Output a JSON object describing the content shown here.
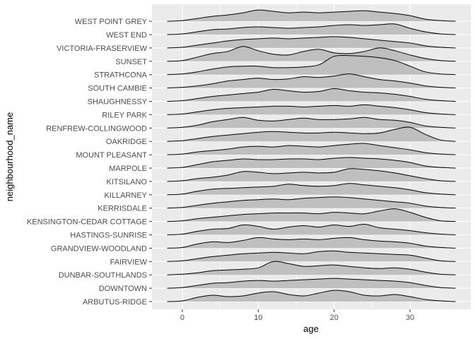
{
  "chart_data": {
    "type": "ridgeline",
    "xlabel": "age",
    "ylabel": "neighbourhood_name",
    "xlim": [
      -4,
      38
    ],
    "xticks": [
      0,
      10,
      20,
      30
    ],
    "grid": true,
    "colors": {
      "panel": "#ebebeb",
      "grid": "#ffffff",
      "fill": "#bfbfbf",
      "line": "#000000"
    },
    "x": [
      -2,
      0,
      2,
      4,
      6,
      8,
      10,
      12,
      14,
      16,
      18,
      20,
      22,
      24,
      26,
      28,
      30,
      32,
      34,
      36
    ],
    "series": [
      {
        "name": "ARBUTUS-RIDGE",
        "values": [
          0.0,
          0.05,
          0.3,
          0.45,
          0.35,
          0.4,
          0.6,
          0.7,
          0.5,
          0.4,
          0.6,
          0.8,
          0.7,
          0.45,
          0.4,
          0.5,
          0.35,
          0.15,
          0.05,
          0.0
        ]
      },
      {
        "name": "DOWNTOWN",
        "values": [
          0.0,
          0.05,
          0.2,
          0.35,
          0.4,
          0.5,
          0.55,
          0.5,
          0.55,
          0.6,
          0.65,
          0.7,
          0.65,
          0.6,
          0.55,
          0.5,
          0.4,
          0.2,
          0.05,
          0.0
        ]
      },
      {
        "name": "DUNBAR-SOUTHLANDS",
        "values": [
          0.0,
          0.05,
          0.15,
          0.3,
          0.35,
          0.4,
          0.5,
          0.95,
          0.8,
          0.6,
          0.65,
          0.7,
          0.6,
          0.5,
          0.45,
          0.5,
          0.4,
          0.2,
          0.05,
          0.0
        ]
      },
      {
        "name": "FAIRVIEW",
        "values": [
          0.0,
          0.05,
          0.2,
          0.35,
          0.45,
          0.55,
          0.6,
          0.65,
          0.6,
          0.55,
          0.7,
          0.75,
          0.65,
          0.6,
          0.55,
          0.5,
          0.45,
          0.25,
          0.05,
          0.0
        ]
      },
      {
        "name": "GRANDVIEW-WOODLAND",
        "values": [
          0.0,
          0.05,
          0.3,
          0.45,
          0.4,
          0.55,
          0.75,
          0.65,
          0.6,
          0.65,
          0.6,
          0.7,
          0.75,
          0.6,
          0.5,
          0.45,
          0.35,
          0.15,
          0.05,
          0.0
        ]
      },
      {
        "name": "HASTINGS-SUNRISE",
        "values": [
          0.0,
          0.05,
          0.25,
          0.4,
          0.45,
          0.7,
          0.6,
          0.4,
          0.55,
          0.65,
          0.55,
          0.7,
          0.6,
          0.75,
          0.5,
          0.4,
          0.3,
          0.15,
          0.05,
          0.0
        ]
      },
      {
        "name": "KENSINGTON-CEDAR COTTAGE",
        "values": [
          0.0,
          0.05,
          0.2,
          0.3,
          0.4,
          0.5,
          0.55,
          0.6,
          0.6,
          0.6,
          0.55,
          0.65,
          0.6,
          0.55,
          0.75,
          0.9,
          0.65,
          0.3,
          0.05,
          0.0
        ]
      },
      {
        "name": "KERRISDALE",
        "values": [
          0.0,
          0.05,
          0.2,
          0.35,
          0.45,
          0.55,
          0.6,
          0.65,
          0.6,
          0.7,
          0.75,
          0.8,
          0.75,
          0.65,
          0.55,
          0.45,
          0.35,
          0.15,
          0.05,
          0.0
        ]
      },
      {
        "name": "KILLARNEY",
        "values": [
          0.0,
          0.05,
          0.25,
          0.4,
          0.45,
          0.5,
          0.55,
          0.6,
          0.75,
          0.65,
          0.6,
          0.65,
          0.8,
          0.7,
          0.6,
          0.5,
          0.35,
          0.15,
          0.05,
          0.0
        ]
      },
      {
        "name": "KITSILANO",
        "values": [
          0.0,
          0.05,
          0.2,
          0.3,
          0.45,
          0.7,
          0.65,
          0.55,
          0.6,
          0.65,
          0.6,
          0.65,
          0.9,
          0.85,
          0.75,
          0.6,
          0.4,
          0.2,
          0.05,
          0.0
        ]
      },
      {
        "name": "MARPOLE",
        "values": [
          0.0,
          0.05,
          0.25,
          0.45,
          0.55,
          0.65,
          0.6,
          0.6,
          0.65,
          0.65,
          0.6,
          0.7,
          0.75,
          0.7,
          0.65,
          0.55,
          0.4,
          0.15,
          0.05,
          0.0
        ]
      },
      {
        "name": "MOUNT PLEASANT",
        "values": [
          0.0,
          0.05,
          0.2,
          0.3,
          0.4,
          0.55,
          0.6,
          0.55,
          0.65,
          0.6,
          0.55,
          0.65,
          0.75,
          0.8,
          0.65,
          0.5,
          0.35,
          0.15,
          0.05,
          0.0
        ]
      },
      {
        "name": "OAKRIDGE",
        "values": [
          0.0,
          0.05,
          0.2,
          0.35,
          0.45,
          0.55,
          0.65,
          0.7,
          0.65,
          0.6,
          0.6,
          0.65,
          0.6,
          0.55,
          0.6,
          0.85,
          1.0,
          0.5,
          0.1,
          0.0
        ]
      },
      {
        "name": "RENFREW-COLLINGWOOD",
        "values": [
          0.0,
          0.05,
          0.2,
          0.45,
          0.6,
          0.75,
          0.55,
          0.5,
          0.6,
          0.7,
          0.6,
          0.6,
          0.65,
          0.75,
          0.6,
          0.55,
          0.4,
          0.15,
          0.05,
          0.0
        ]
      },
      {
        "name": "RILEY PARK",
        "values": [
          0.0,
          0.05,
          0.2,
          0.35,
          0.45,
          0.5,
          0.55,
          0.6,
          0.6,
          0.55,
          0.6,
          0.65,
          0.6,
          0.7,
          0.6,
          0.5,
          0.35,
          0.15,
          0.05,
          0.0
        ]
      },
      {
        "name": "SHAUGHNESSY",
        "values": [
          0.0,
          0.05,
          0.2,
          0.35,
          0.45,
          0.55,
          0.65,
          0.85,
          0.75,
          0.65,
          0.7,
          0.9,
          0.75,
          0.65,
          0.6,
          0.5,
          0.35,
          0.15,
          0.05,
          0.0
        ]
      },
      {
        "name": "SOUTH CAMBIE",
        "values": [
          0.0,
          0.05,
          0.15,
          0.3,
          0.5,
          0.6,
          0.7,
          0.6,
          0.65,
          0.8,
          0.75,
          0.85,
          1.0,
          0.8,
          0.6,
          0.5,
          0.35,
          0.15,
          0.05,
          0.0
        ]
      },
      {
        "name": "STRATHCONA",
        "values": [
          0.0,
          0.05,
          0.2,
          0.4,
          0.55,
          0.6,
          0.6,
          0.5,
          0.5,
          0.55,
          0.7,
          1.3,
          1.35,
          1.3,
          1.2,
          1.0,
          0.6,
          0.2,
          0.05,
          0.0
        ]
      },
      {
        "name": "SUNSET",
        "values": [
          0.0,
          0.05,
          0.3,
          0.55,
          0.7,
          1.05,
          0.75,
          0.5,
          0.45,
          0.7,
          0.85,
          0.6,
          0.55,
          0.7,
          0.95,
          0.75,
          0.45,
          0.2,
          0.05,
          0.0
        ]
      },
      {
        "name": "VICTORIA-FRASERVIEW",
        "values": [
          0.0,
          0.05,
          0.2,
          0.35,
          0.5,
          0.6,
          0.65,
          0.7,
          0.65,
          0.7,
          0.75,
          0.8,
          0.75,
          0.65,
          0.55,
          0.45,
          0.35,
          0.15,
          0.05,
          0.0
        ]
      },
      {
        "name": "WEST END",
        "values": [
          0.0,
          0.05,
          0.2,
          0.35,
          0.4,
          0.5,
          0.55,
          0.5,
          0.45,
          0.5,
          0.55,
          0.65,
          0.7,
          0.65,
          0.7,
          0.75,
          0.45,
          0.2,
          0.05,
          0.0
        ]
      },
      {
        "name": "WEST POINT GREY",
        "values": [
          0.0,
          0.05,
          0.2,
          0.35,
          0.45,
          0.6,
          0.8,
          0.7,
          0.6,
          0.65,
          0.6,
          0.65,
          0.7,
          0.75,
          0.65,
          0.55,
          0.4,
          0.15,
          0.05,
          0.0
        ]
      }
    ]
  }
}
